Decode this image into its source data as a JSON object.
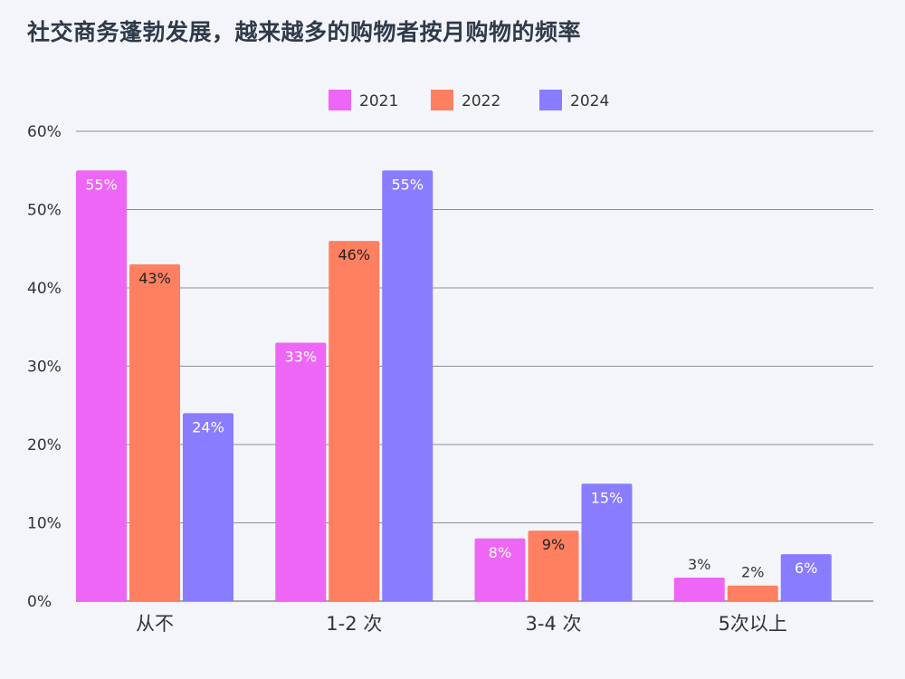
{
  "chart_data": {
    "type": "bar",
    "title": "社交商务蓬勃发展，越来越多的购物者按月购物的频率",
    "categories": [
      "从不",
      "1-2 次",
      "3-4 次",
      "5次以上"
    ],
    "series": [
      {
        "name": "2021",
        "color": "#ee66f5",
        "values": [
          55,
          33,
          8,
          3
        ],
        "labels": [
          "55%",
          "33%",
          "8%",
          "3%"
        ]
      },
      {
        "name": "2022",
        "color": "#ff8060",
        "values": [
          43,
          46,
          9,
          2
        ],
        "labels": [
          "43%",
          "46%",
          "9%",
          "2%"
        ]
      },
      {
        "name": "2024",
        "color": "#8a7cff",
        "values": [
          24,
          55,
          15,
          6
        ],
        "labels": [
          "24%",
          "55%",
          "15%",
          "6%"
        ]
      }
    ],
    "ylim": [
      0,
      60
    ],
    "yticks": [
      {
        "value": 0,
        "label": "0%"
      },
      {
        "value": 10,
        "label": "10%"
      },
      {
        "value": 20,
        "label": "20%"
      },
      {
        "value": 30,
        "label": "30%"
      },
      {
        "value": 40,
        "label": "40%"
      },
      {
        "value": 50,
        "label": "50%"
      },
      {
        "value": 60,
        "label": "60%"
      }
    ],
    "grid": true,
    "legend_position": "top-center",
    "xlabel": "",
    "ylabel": ""
  }
}
